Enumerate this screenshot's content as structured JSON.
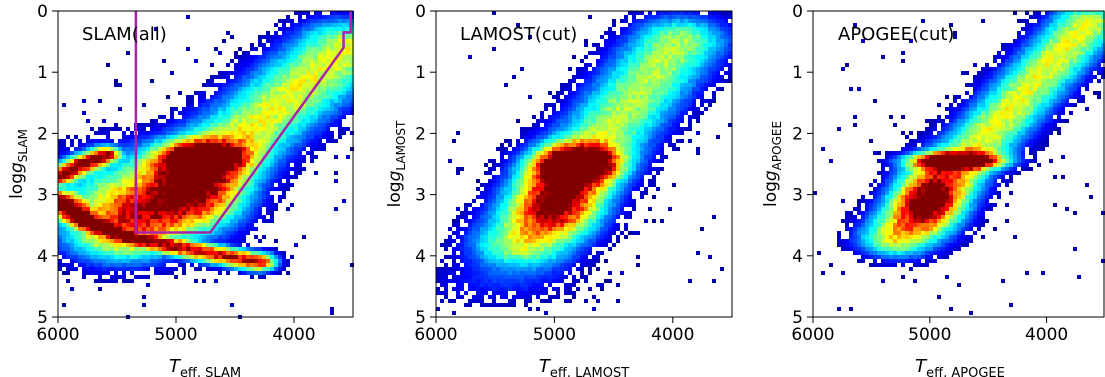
{
  "chart_data": [
    {
      "type": "heatmap",
      "title": "SLAM(all)",
      "xlabel": {
        "main": "T",
        "sub": "eff, SLAM"
      },
      "ylabel": {
        "main": "log",
        "italic": "g",
        "sub": "SLAM"
      },
      "xlim": [
        6000,
        3500
      ],
      "ylim": [
        5,
        0
      ],
      "xticks": [
        6000,
        5000,
        4000
      ],
      "yticks": [
        0,
        1,
        2,
        3,
        4,
        5
      ],
      "colormap": "jet",
      "density_features": [
        {
          "kind": "giant_branch",
          "teff": [
            5400,
            3500
          ],
          "logg": [
            3.6,
            0.5
          ]
        },
        {
          "kind": "red_clump",
          "teff": 4800,
          "logg": 2.4
        },
        {
          "kind": "main_sequence_turnoff",
          "teff": [
            6000,
            4300
          ],
          "logg": [
            2.6,
            4.1
          ]
        }
      ],
      "selection_polygon": {
        "color": "#aa22aa",
        "teff": [
          5340,
          5340,
          4710,
          3580,
          3580,
          3520,
          3520
        ],
        "logg": [
          0.0,
          3.62,
          3.62,
          0.6,
          0.35,
          0.35,
          0.0
        ]
      }
    },
    {
      "type": "heatmap",
      "title": "LAMOST(cut)",
      "xlabel": {
        "main": "T",
        "sub": "eff, LAMOST"
      },
      "ylabel": {
        "main": "log",
        "italic": "g",
        "sub": "LAMOST"
      },
      "xlim": [
        6000,
        3500
      ],
      "ylim": [
        5,
        0
      ],
      "xticks": [
        6000,
        5000,
        4000
      ],
      "yticks": [
        0,
        1,
        2,
        3,
        4,
        5
      ],
      "colormap": "jet",
      "density_features": [
        {
          "kind": "giant_branch",
          "teff": [
            5300,
            3900
          ],
          "logg": [
            3.8,
            0.5
          ]
        },
        {
          "kind": "red_clump",
          "teff": 4800,
          "logg": 2.5
        }
      ]
    },
    {
      "type": "heatmap",
      "title": "APOGEE(cut)",
      "xlabel": {
        "main": "T",
        "sub": "eff, APOGEE"
      },
      "ylabel": {
        "main": "log",
        "italic": "g",
        "sub": "APOGEE"
      },
      "xlim": [
        6000,
        3500
      ],
      "ylim": [
        5,
        0
      ],
      "xticks": [
        6000,
        5000,
        4000
      ],
      "yticks": [
        0,
        1,
        2,
        3,
        4,
        5
      ],
      "colormap": "jet",
      "density_features": [
        {
          "kind": "giant_branch",
          "teff": [
            5300,
            3650
          ],
          "logg": [
            3.7,
            0.2
          ]
        },
        {
          "kind": "red_clump",
          "teff": 4780,
          "logg": 2.45
        }
      ]
    }
  ]
}
